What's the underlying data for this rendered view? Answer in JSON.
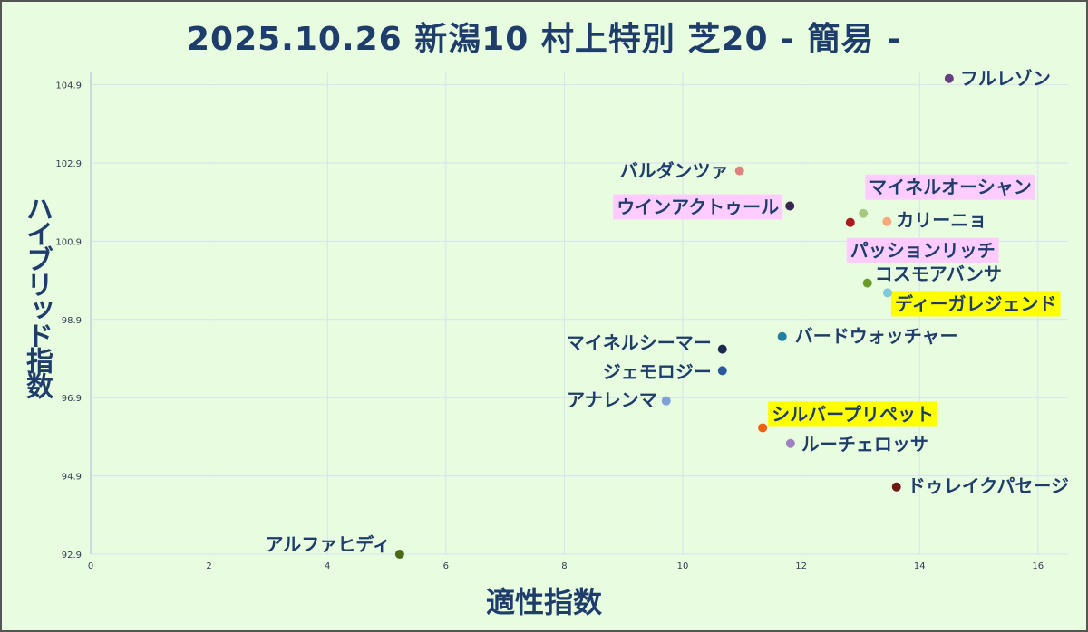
{
  "chart_data": {
    "type": "scatter",
    "title": "2025.10.26 新潟10 村上特別 芝20 - 簡易 -",
    "xlabel": "適性指数",
    "ylabel": "ハイブリッド指数",
    "xlim": [
      0,
      16.5
    ],
    "ylim": [
      92.9,
      105.3
    ],
    "xticks": [
      "0",
      "2",
      "4",
      "6",
      "8",
      "10",
      "12",
      "14",
      "16"
    ],
    "yticks": [
      "92.9",
      "94.9",
      "96.9",
      "98.9",
      "100.9",
      "102.9",
      "104.9"
    ],
    "grid": true,
    "points": [
      {
        "name": "フルレゾン",
        "x": 14.5,
        "y": 105.06,
        "color": "#6b3d86",
        "highlight": null
      },
      {
        "name": "バルダンツァ",
        "x": 10.96,
        "y": 102.7,
        "color": "#e08080",
        "highlight": null
      },
      {
        "name": "ウインアクトゥール",
        "x": 11.81,
        "y": 101.8,
        "color": "#3a2550",
        "highlight": "#ffccff"
      },
      {
        "name": "マイネルオーシャン",
        "x": 13.05,
        "y": 101.61,
        "color": "#a8c880",
        "highlight": "#ffccff"
      },
      {
        "name": "カリーニョ",
        "x": 13.45,
        "y": 101.4,
        "color": "#f5a878",
        "highlight": null
      },
      {
        "name": "パッションリッチ",
        "x": 12.83,
        "y": 101.38,
        "color": "#a81c1c",
        "highlight": "#ffccff"
      },
      {
        "name": "コスモアバンサ",
        "x": 13.12,
        "y": 99.83,
        "color": "#6a9a2a",
        "highlight": null
      },
      {
        "name": "ディーガレジェンド",
        "x": 13.46,
        "y": 99.58,
        "color": "#80c8e0",
        "highlight": "#ffff00"
      },
      {
        "name": "バードウォッチャー",
        "x": 11.68,
        "y": 98.46,
        "color": "#2080a0",
        "highlight": null
      },
      {
        "name": "マイネルシーマー",
        "x": 10.67,
        "y": 98.14,
        "color": "#1a2a50",
        "highlight": null
      },
      {
        "name": "ジェモロジー",
        "x": 10.67,
        "y": 97.59,
        "color": "#2a5a9a",
        "highlight": null
      },
      {
        "name": "アナレンマ",
        "x": 9.72,
        "y": 96.82,
        "color": "#80a0d8",
        "highlight": null
      },
      {
        "name": "シルバープリペット",
        "x": 11.35,
        "y": 96.13,
        "color": "#f06010",
        "highlight": "#ffff00"
      },
      {
        "name": "ルーチェロッサ",
        "x": 11.82,
        "y": 95.73,
        "color": "#a080c0",
        "highlight": null
      },
      {
        "name": "ドゥレイクパセージ",
        "x": 13.61,
        "y": 94.62,
        "color": "#701818",
        "highlight": null
      },
      {
        "name": "アルファヒディ",
        "x": 5.22,
        "y": 92.9,
        "color": "#4a6a1a",
        "highlight": null
      }
    ]
  }
}
